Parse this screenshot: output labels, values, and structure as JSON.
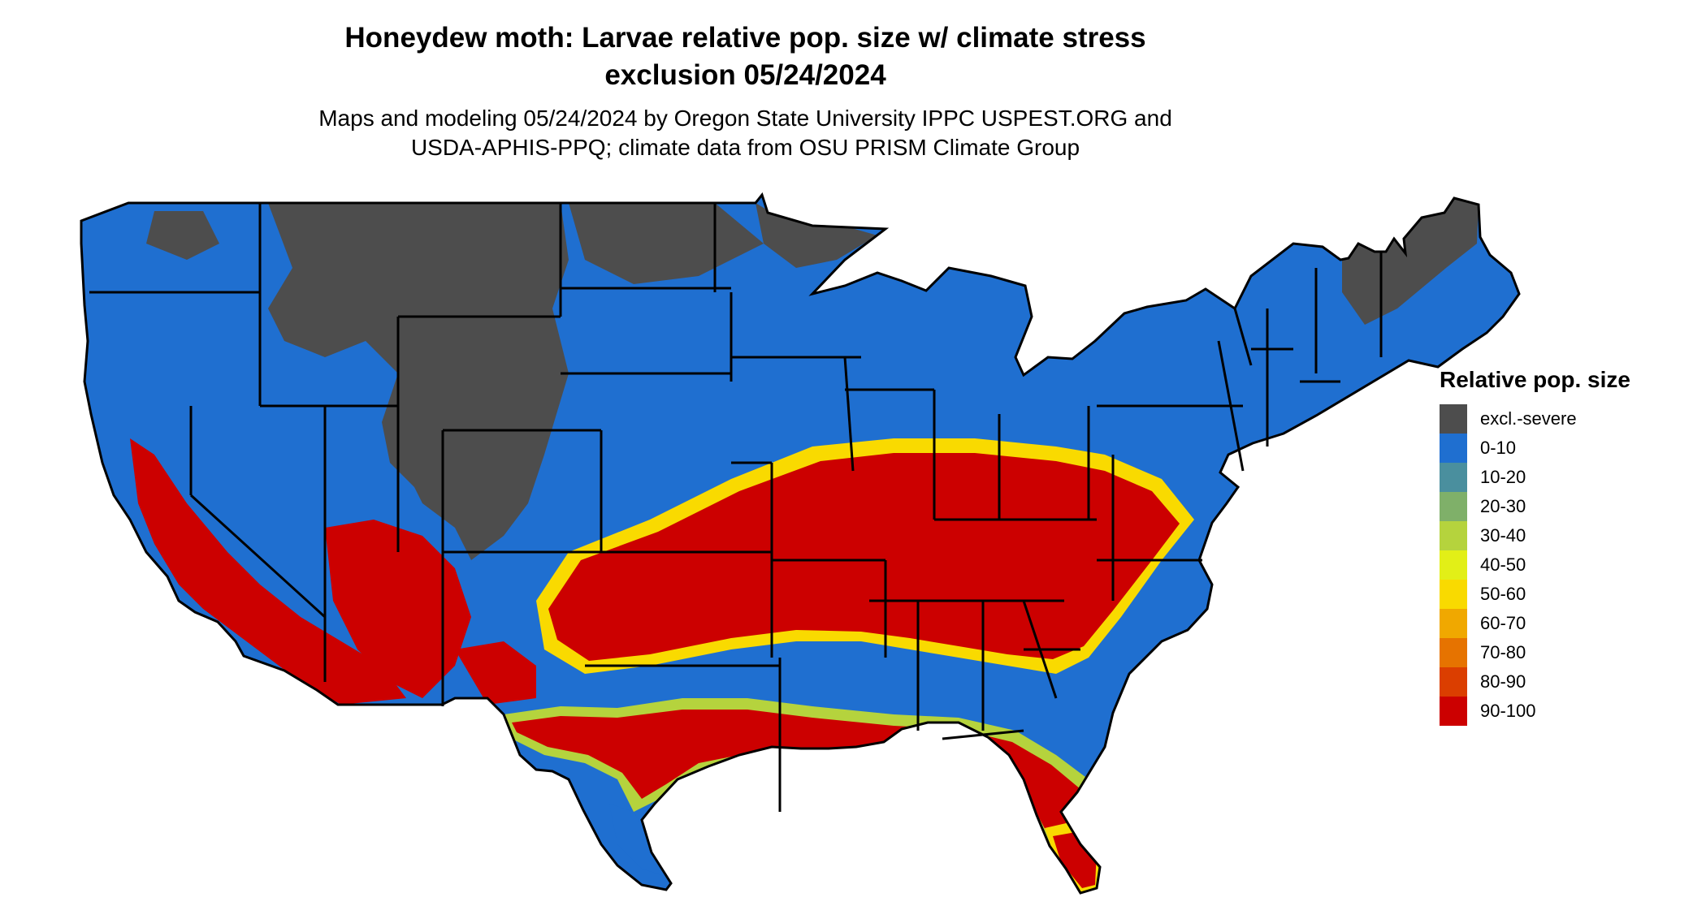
{
  "title_line1": "Honeydew moth: Larvae relative pop. size w/ climate stress",
  "title_line2": "exclusion 05/24/2024",
  "subtitle_line1": "Maps and modeling 05/24/2024 by Oregon State University IPPC USPEST.ORG and",
  "subtitle_line2": "USDA-APHIS-PPQ; climate data from OSU PRISM Climate Group",
  "legend": {
    "title": "Relative pop. size",
    "items": [
      {
        "label": "excl.-severe",
        "color": "#4d4d4d"
      },
      {
        "label": "0-10",
        "color": "#1f6fd0"
      },
      {
        "label": "10-20",
        "color": "#4a8f9e"
      },
      {
        "label": "20-30",
        "color": "#7fb069"
      },
      {
        "label": "30-40",
        "color": "#b5d33d"
      },
      {
        "label": "40-50",
        "color": "#e2ef17"
      },
      {
        "label": "50-60",
        "color": "#f9da00"
      },
      {
        "label": "60-70",
        "color": "#f0a800"
      },
      {
        "label": "70-80",
        "color": "#e67300"
      },
      {
        "label": "80-90",
        "color": "#db3e00"
      },
      {
        "label": "90-100",
        "color": "#cc0000"
      }
    ]
  }
}
